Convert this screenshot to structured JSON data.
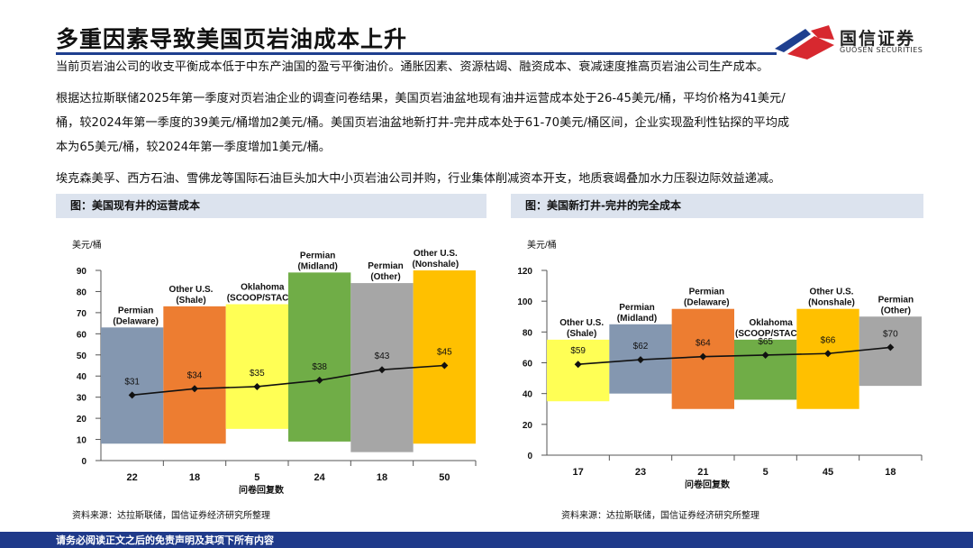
{
  "page": {
    "title": "多重因素导致美国页岩油成本上升",
    "logo_cn": "国信证券",
    "logo_en": "GUOSEN SECURITIES",
    "paragraphs": [
      "当前页岩油公司的收支平衡成本低于中东产油国的盈亏平衡油价。通胀因素、资源枯竭、融资成本、衰减速度推高页岩油公司生产成本。",
      "根据达拉斯联储2025年第一季度对页岩油企业的调查问卷结果，美国页岩油盆地现有油井运营成本处于26-45美元/桶，平均价格为41美元/",
      "桶，较2024年第一季度的39美元/桶增加2美元/桶。美国页岩油盆地新打井-完井成本处于61-70美元/桶区间，企业实现盈利性钻探的平均成",
      "本为65美元/桶，较2024年第一季度增加1美元/桶。",
      "埃克森美孚、西方石油、雪佛龙等国际石油巨头加大中小页岩油公司并购，行业集体削减资本开支，地质衰竭叠加水力压裂边际效益递减。"
    ],
    "footer": "请务必阅读正文之后的免责声明及其项下所有内容"
  },
  "chart_data": [
    {
      "type": "bar",
      "panel_title": "图：美国现有井的运营成本",
      "ylabel": "美元/桶",
      "xlabel": "问卷回复数",
      "ylim": [
        0,
        90
      ],
      "yticks": [
        0,
        10,
        20,
        30,
        40,
        50,
        60,
        70,
        80,
        90
      ],
      "categories": [
        "Permian (Delaware)",
        "Other U.S. (Shale)",
        "Oklahoma (SCOOP/STACK)",
        "Permian (Midland)",
        "Permian (Other)",
        "Other U.S. (Nonshale)"
      ],
      "x_tick_labels": [
        "22",
        "18",
        "5",
        "24",
        "18",
        "50"
      ],
      "range_low": [
        8,
        8,
        15,
        9,
        4,
        8
      ],
      "range_high": [
        63,
        73,
        74,
        89,
        84,
        90
      ],
      "colors": [
        "#8497b0",
        "#ed7d31",
        "#ffff55",
        "#70ad47",
        "#a6a6a6",
        "#ffc000"
      ],
      "average_line": {
        "values": [
          31,
          34,
          35,
          38,
          43,
          45
        ],
        "labels": [
          "$31",
          "$34",
          "$35",
          "$38",
          "$43",
          "$45"
        ]
      },
      "source": "资料来源：达拉斯联储，国信证券经济研究所整理"
    },
    {
      "type": "bar",
      "panel_title": "图：美国新打井-完井的完全成本",
      "ylabel": "美元/桶",
      "xlabel": "问卷回复数",
      "ylim": [
        0,
        120
      ],
      "yticks": [
        0,
        20,
        40,
        60,
        80,
        100,
        120
      ],
      "categories": [
        "Other U.S. (Shale)",
        "Permian (Midland)",
        "Permian (Delaware)",
        "Oklahoma (SCOOP/STACK)",
        "Other U.S. (Nonshale)",
        "Permian (Other)"
      ],
      "x_tick_labels": [
        "17",
        "23",
        "21",
        "5",
        "45",
        "18"
      ],
      "range_low": [
        35,
        40,
        30,
        36,
        30,
        45
      ],
      "range_high": [
        75,
        85,
        95,
        75,
        95,
        90
      ],
      "colors": [
        "#ffff55",
        "#8497b0",
        "#ed7d31",
        "#70ad47",
        "#ffc000",
        "#a6a6a6"
      ],
      "average_line": {
        "values": [
          59,
          62,
          64,
          65,
          66,
          70
        ],
        "labels": [
          "$59",
          "$62",
          "$64",
          "$65",
          "$66",
          "$70"
        ]
      },
      "source": "资料来源：达拉斯联储，国信证券经济研究所整理"
    }
  ]
}
